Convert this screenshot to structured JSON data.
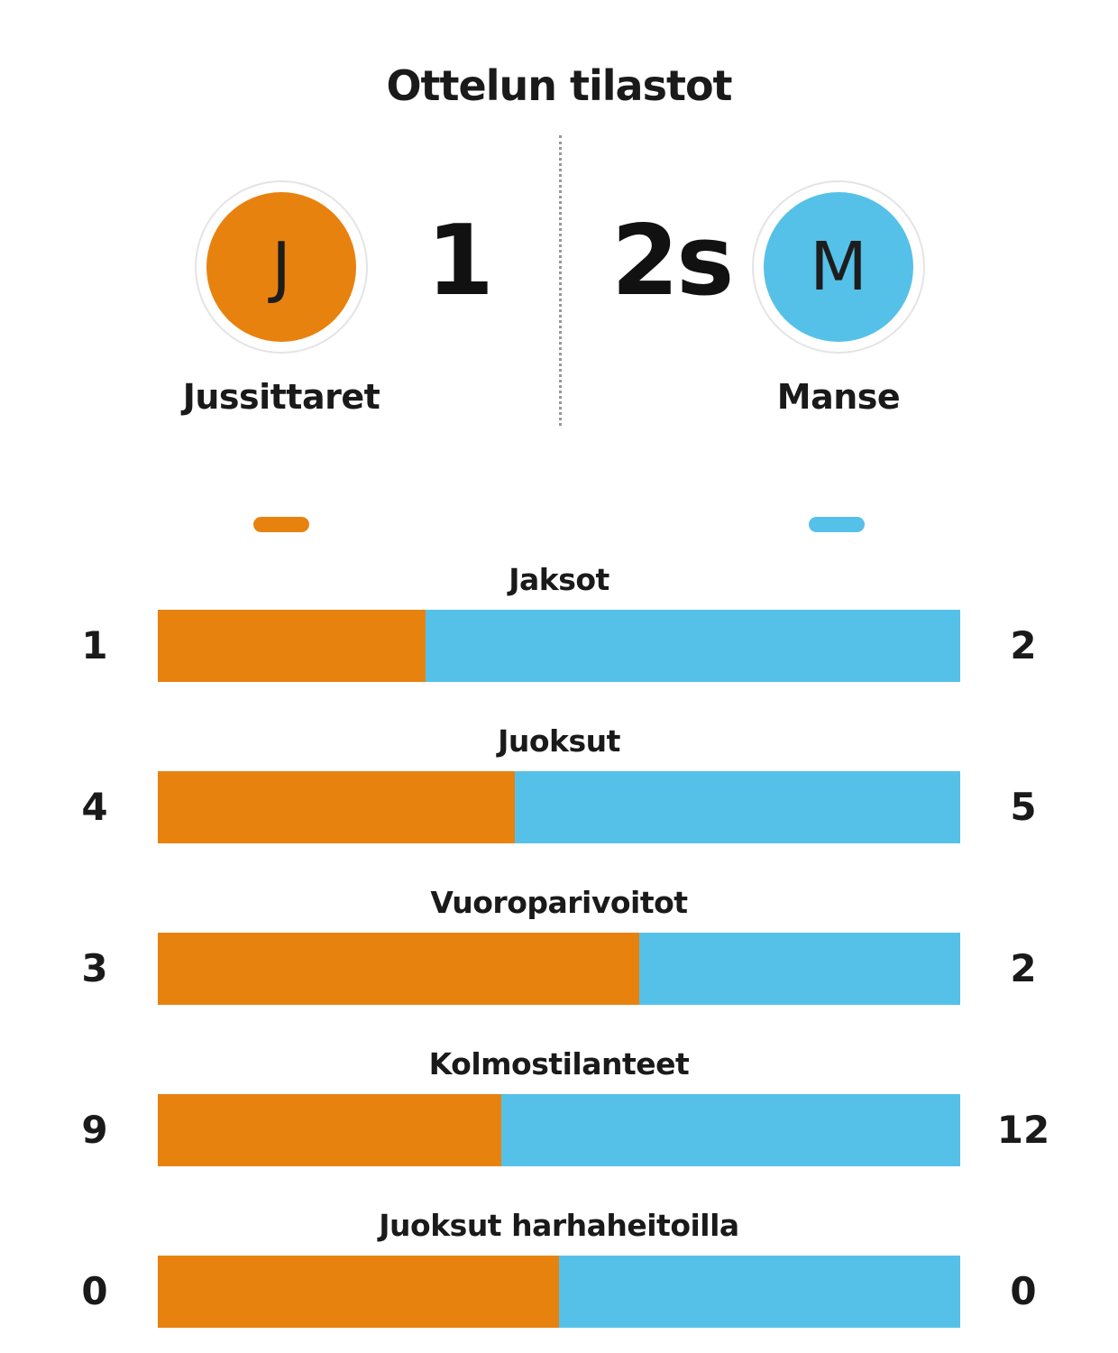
{
  "title": "Ottelun tilastot",
  "teams": {
    "home": {
      "name": "Jussittaret",
      "initial": "J",
      "score": "1",
      "color": "#e8820e"
    },
    "away": {
      "name": "Manse",
      "initial": "M",
      "score": "2s",
      "color": "#56c1e8"
    }
  },
  "chart_data": {
    "type": "bar",
    "title": "Ottelun tilastot",
    "orientation": "horizontal",
    "legend_position": "top",
    "categories": [
      "Jaksot",
      "Juoksut",
      "Vuoroparivoitot",
      "Kolmostilanteet",
      "Juoksut harhaheitoilla"
    ],
    "series": [
      {
        "name": "Jussittaret",
        "color": "#e8820e",
        "values": [
          1,
          4,
          3,
          9,
          0
        ]
      },
      {
        "name": "Manse",
        "color": "#56c1e8",
        "values": [
          2,
          5,
          2,
          12,
          0
        ]
      }
    ],
    "note": "Each row is a single stacked bar split proportionally between home (left, orange) and away (right, blue); 0-0 renders as 50/50."
  }
}
